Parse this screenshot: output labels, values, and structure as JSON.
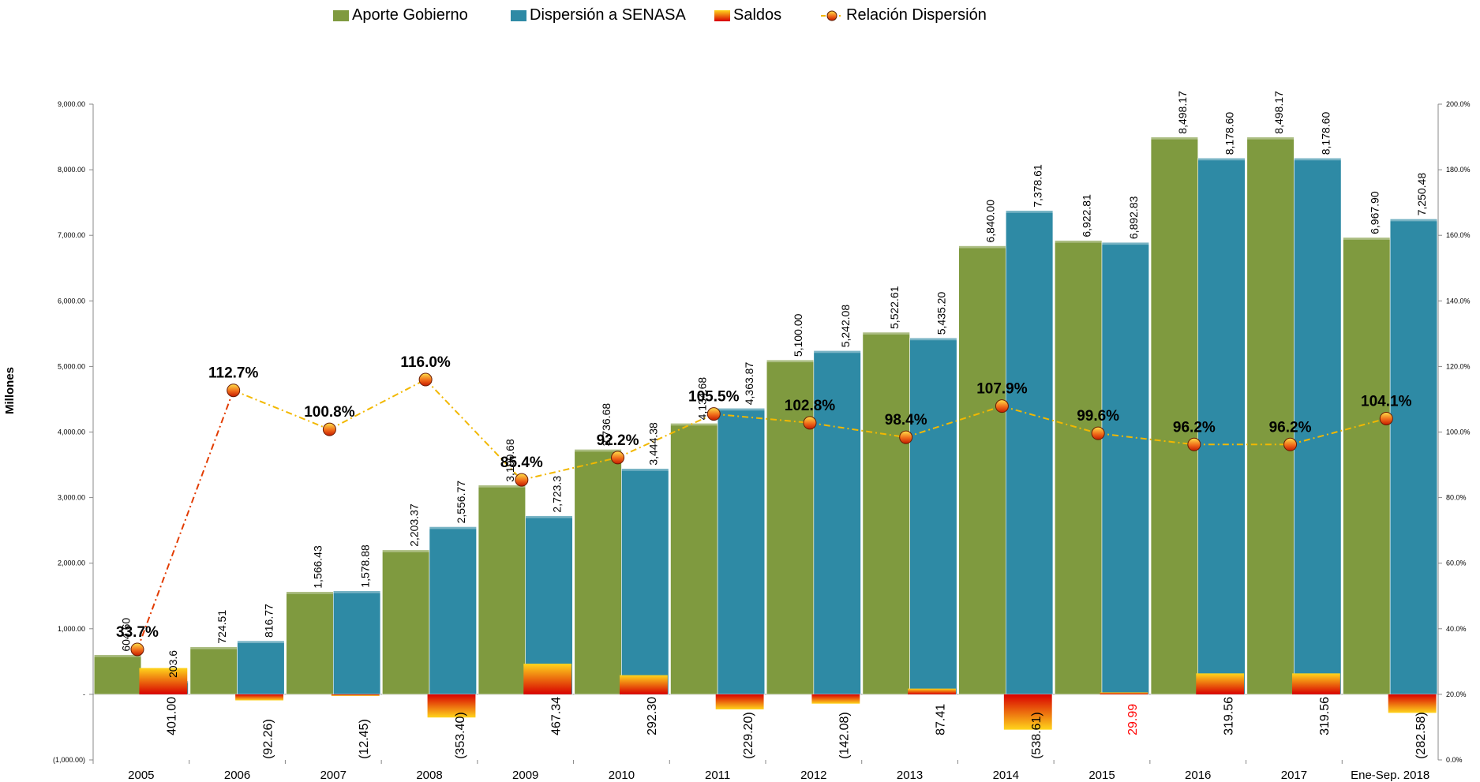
{
  "legend": {
    "aporte": "Aporte Gobierno",
    "dispersion": "Dispersión a SENASA",
    "saldos": "Saldos",
    "relacion": "Relación Dispersión"
  },
  "colors": {
    "aporte": "#7f9a3f",
    "dispersion": "#2e8aa5",
    "saldos_top": "#ffd51c",
    "saldos_bottom": "#d80000",
    "relacion_line": "#f2b800",
    "relacion_line_early": "#e23b00",
    "marker": "#f06a1a",
    "negative_label": "#ff0000"
  },
  "chart_data": {
    "type": "bar",
    "title": "",
    "xlabel": "",
    "ylabel": "Millones",
    "ylim": [
      -1000,
      9000
    ],
    "y2lim": [
      0,
      200
    ],
    "categories": [
      "2005",
      "2006",
      "2007",
      "2008",
      "2009",
      "2010",
      "2011",
      "2012",
      "2013",
      "2014",
      "2015",
      "2016",
      "2017",
      "Ene-Sep. 2018"
    ],
    "y_ticks": [
      "(1,000.00)",
      "-",
      "1,000.00",
      "2,000.00",
      "3,000.00",
      "4,000.00",
      "5,000.00",
      "6,000.00",
      "7,000.00",
      "8,000.00",
      "9,000.00"
    ],
    "y_tick_values": [
      -1000,
      0,
      1000,
      2000,
      3000,
      4000,
      5000,
      6000,
      7000,
      8000,
      9000
    ],
    "y2_ticks": [
      "0.0%",
      "20.0%",
      "40.0%",
      "60.0%",
      "80.0%",
      "100.0%",
      "120.0%",
      "140.0%",
      "160.0%",
      "180.0%",
      "200.0%"
    ],
    "y2_tick_values": [
      0,
      20,
      40,
      60,
      80,
      100,
      120,
      140,
      160,
      180,
      200
    ],
    "series": [
      {
        "name": "Aporte Gobierno",
        "type": "bar",
        "values": [
          604.6,
          724.51,
          1566.43,
          2203.37,
          3190.68,
          3736.68,
          4134.68,
          5100.0,
          5522.61,
          6840.0,
          6922.81,
          8498.17,
          8498.17,
          6967.9
        ],
        "labels": [
          "604.60",
          "724.51",
          "1,566.43",
          "2,203.37",
          "3,190.68",
          "3,736.68",
          "4,134.68",
          "5,100.00",
          "5,522.61",
          "6,840.00",
          "6,922.81",
          "8,498.17",
          "8,498.17",
          "6,967.90"
        ]
      },
      {
        "name": "Dispersión a SENASA",
        "type": "bar",
        "values": [
          203.6,
          816.77,
          1578.88,
          2556.77,
          2723.34,
          3444.38,
          4363.87,
          5242.08,
          5435.2,
          7378.61,
          6892.83,
          8178.6,
          8178.6,
          7250.48
        ],
        "labels": [
          "203.6",
          "816.77",
          "1,578.88",
          "2,556.77",
          "2,723.3",
          "3,444.38",
          "4,363.87",
          "5,242.08",
          "5,435.20",
          "7,378.61",
          "6,892.83",
          "8,178.60",
          "8,178.60",
          "7,250.48"
        ]
      },
      {
        "name": "Saldos",
        "type": "bar",
        "values": [
          401.0,
          -92.26,
          -12.45,
          -353.4,
          467.34,
          292.3,
          -229.2,
          -142.08,
          87.41,
          -538.61,
          29.99,
          319.56,
          319.56,
          -282.58
        ],
        "labels": [
          "401.00",
          "(92.26)",
          "(12.45)",
          "(353.40)",
          "467.34",
          "292.30",
          "(229.20)",
          "(142.08)",
          "87.41",
          "(538.61)",
          "29.99",
          "319.56",
          "319.56",
          "(282.58)"
        ]
      },
      {
        "name": "Relación Dispersión",
        "type": "line",
        "axis": "secondary",
        "values": [
          33.7,
          112.7,
          100.8,
          116.0,
          85.4,
          92.2,
          105.5,
          102.8,
          98.4,
          107.9,
          99.6,
          96.2,
          96.2,
          104.1
        ],
        "labels": [
          "33.7%",
          "112.7%",
          "100.8%",
          "116.0%",
          "85.4%",
          "92.2%",
          "105.5%",
          "102.8%",
          "98.4%",
          "107.9%",
          "99.6%",
          "96.2%",
          "96.2%",
          "104.1%"
        ]
      }
    ],
    "legend_position": "top",
    "grid": false
  }
}
